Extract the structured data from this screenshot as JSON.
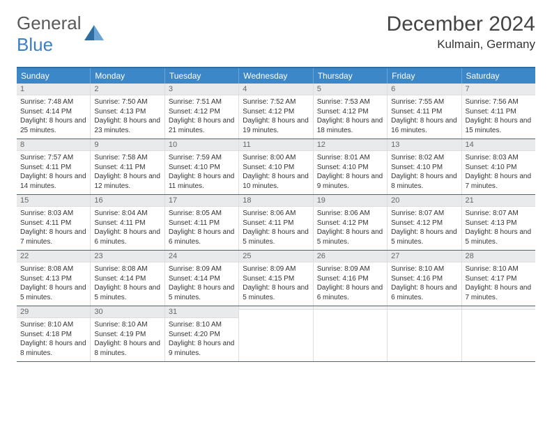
{
  "logo": {
    "general": "General",
    "blue": "Blue"
  },
  "title": {
    "month": "December 2024",
    "location": "Kulmain, Germany"
  },
  "colors": {
    "header_bg": "#3b87c8",
    "header_border": "#2e6da4",
    "daynum_bg": "#e9eaec",
    "text": "#2a2a2a",
    "accent": "#3b7fc4"
  },
  "weekdays": [
    "Sunday",
    "Monday",
    "Tuesday",
    "Wednesday",
    "Thursday",
    "Friday",
    "Saturday"
  ],
  "weeks": [
    [
      {
        "n": "1",
        "sr": "Sunrise: 7:48 AM",
        "ss": "Sunset: 4:14 PM",
        "dl": "Daylight: 8 hours and 25 minutes."
      },
      {
        "n": "2",
        "sr": "Sunrise: 7:50 AM",
        "ss": "Sunset: 4:13 PM",
        "dl": "Daylight: 8 hours and 23 minutes."
      },
      {
        "n": "3",
        "sr": "Sunrise: 7:51 AM",
        "ss": "Sunset: 4:12 PM",
        "dl": "Daylight: 8 hours and 21 minutes."
      },
      {
        "n": "4",
        "sr": "Sunrise: 7:52 AM",
        "ss": "Sunset: 4:12 PM",
        "dl": "Daylight: 8 hours and 19 minutes."
      },
      {
        "n": "5",
        "sr": "Sunrise: 7:53 AM",
        "ss": "Sunset: 4:12 PM",
        "dl": "Daylight: 8 hours and 18 minutes."
      },
      {
        "n": "6",
        "sr": "Sunrise: 7:55 AM",
        "ss": "Sunset: 4:11 PM",
        "dl": "Daylight: 8 hours and 16 minutes."
      },
      {
        "n": "7",
        "sr": "Sunrise: 7:56 AM",
        "ss": "Sunset: 4:11 PM",
        "dl": "Daylight: 8 hours and 15 minutes."
      }
    ],
    [
      {
        "n": "8",
        "sr": "Sunrise: 7:57 AM",
        "ss": "Sunset: 4:11 PM",
        "dl": "Daylight: 8 hours and 14 minutes."
      },
      {
        "n": "9",
        "sr": "Sunrise: 7:58 AM",
        "ss": "Sunset: 4:11 PM",
        "dl": "Daylight: 8 hours and 12 minutes."
      },
      {
        "n": "10",
        "sr": "Sunrise: 7:59 AM",
        "ss": "Sunset: 4:10 PM",
        "dl": "Daylight: 8 hours and 11 minutes."
      },
      {
        "n": "11",
        "sr": "Sunrise: 8:00 AM",
        "ss": "Sunset: 4:10 PM",
        "dl": "Daylight: 8 hours and 10 minutes."
      },
      {
        "n": "12",
        "sr": "Sunrise: 8:01 AM",
        "ss": "Sunset: 4:10 PM",
        "dl": "Daylight: 8 hours and 9 minutes."
      },
      {
        "n": "13",
        "sr": "Sunrise: 8:02 AM",
        "ss": "Sunset: 4:10 PM",
        "dl": "Daylight: 8 hours and 8 minutes."
      },
      {
        "n": "14",
        "sr": "Sunrise: 8:03 AM",
        "ss": "Sunset: 4:10 PM",
        "dl": "Daylight: 8 hours and 7 minutes."
      }
    ],
    [
      {
        "n": "15",
        "sr": "Sunrise: 8:03 AM",
        "ss": "Sunset: 4:11 PM",
        "dl": "Daylight: 8 hours and 7 minutes."
      },
      {
        "n": "16",
        "sr": "Sunrise: 8:04 AM",
        "ss": "Sunset: 4:11 PM",
        "dl": "Daylight: 8 hours and 6 minutes."
      },
      {
        "n": "17",
        "sr": "Sunrise: 8:05 AM",
        "ss": "Sunset: 4:11 PM",
        "dl": "Daylight: 8 hours and 6 minutes."
      },
      {
        "n": "18",
        "sr": "Sunrise: 8:06 AM",
        "ss": "Sunset: 4:11 PM",
        "dl": "Daylight: 8 hours and 5 minutes."
      },
      {
        "n": "19",
        "sr": "Sunrise: 8:06 AM",
        "ss": "Sunset: 4:12 PM",
        "dl": "Daylight: 8 hours and 5 minutes."
      },
      {
        "n": "20",
        "sr": "Sunrise: 8:07 AM",
        "ss": "Sunset: 4:12 PM",
        "dl": "Daylight: 8 hours and 5 minutes."
      },
      {
        "n": "21",
        "sr": "Sunrise: 8:07 AM",
        "ss": "Sunset: 4:13 PM",
        "dl": "Daylight: 8 hours and 5 minutes."
      }
    ],
    [
      {
        "n": "22",
        "sr": "Sunrise: 8:08 AM",
        "ss": "Sunset: 4:13 PM",
        "dl": "Daylight: 8 hours and 5 minutes."
      },
      {
        "n": "23",
        "sr": "Sunrise: 8:08 AM",
        "ss": "Sunset: 4:14 PM",
        "dl": "Daylight: 8 hours and 5 minutes."
      },
      {
        "n": "24",
        "sr": "Sunrise: 8:09 AM",
        "ss": "Sunset: 4:14 PM",
        "dl": "Daylight: 8 hours and 5 minutes."
      },
      {
        "n": "25",
        "sr": "Sunrise: 8:09 AM",
        "ss": "Sunset: 4:15 PM",
        "dl": "Daylight: 8 hours and 5 minutes."
      },
      {
        "n": "26",
        "sr": "Sunrise: 8:09 AM",
        "ss": "Sunset: 4:16 PM",
        "dl": "Daylight: 8 hours and 6 minutes."
      },
      {
        "n": "27",
        "sr": "Sunrise: 8:10 AM",
        "ss": "Sunset: 4:16 PM",
        "dl": "Daylight: 8 hours and 6 minutes."
      },
      {
        "n": "28",
        "sr": "Sunrise: 8:10 AM",
        "ss": "Sunset: 4:17 PM",
        "dl": "Daylight: 8 hours and 7 minutes."
      }
    ],
    [
      {
        "n": "29",
        "sr": "Sunrise: 8:10 AM",
        "ss": "Sunset: 4:18 PM",
        "dl": "Daylight: 8 hours and 8 minutes."
      },
      {
        "n": "30",
        "sr": "Sunrise: 8:10 AM",
        "ss": "Sunset: 4:19 PM",
        "dl": "Daylight: 8 hours and 8 minutes."
      },
      {
        "n": "31",
        "sr": "Sunrise: 8:10 AM",
        "ss": "Sunset: 4:20 PM",
        "dl": "Daylight: 8 hours and 9 minutes."
      },
      {
        "empty": true
      },
      {
        "empty": true
      },
      {
        "empty": true
      },
      {
        "empty": true
      }
    ]
  ]
}
